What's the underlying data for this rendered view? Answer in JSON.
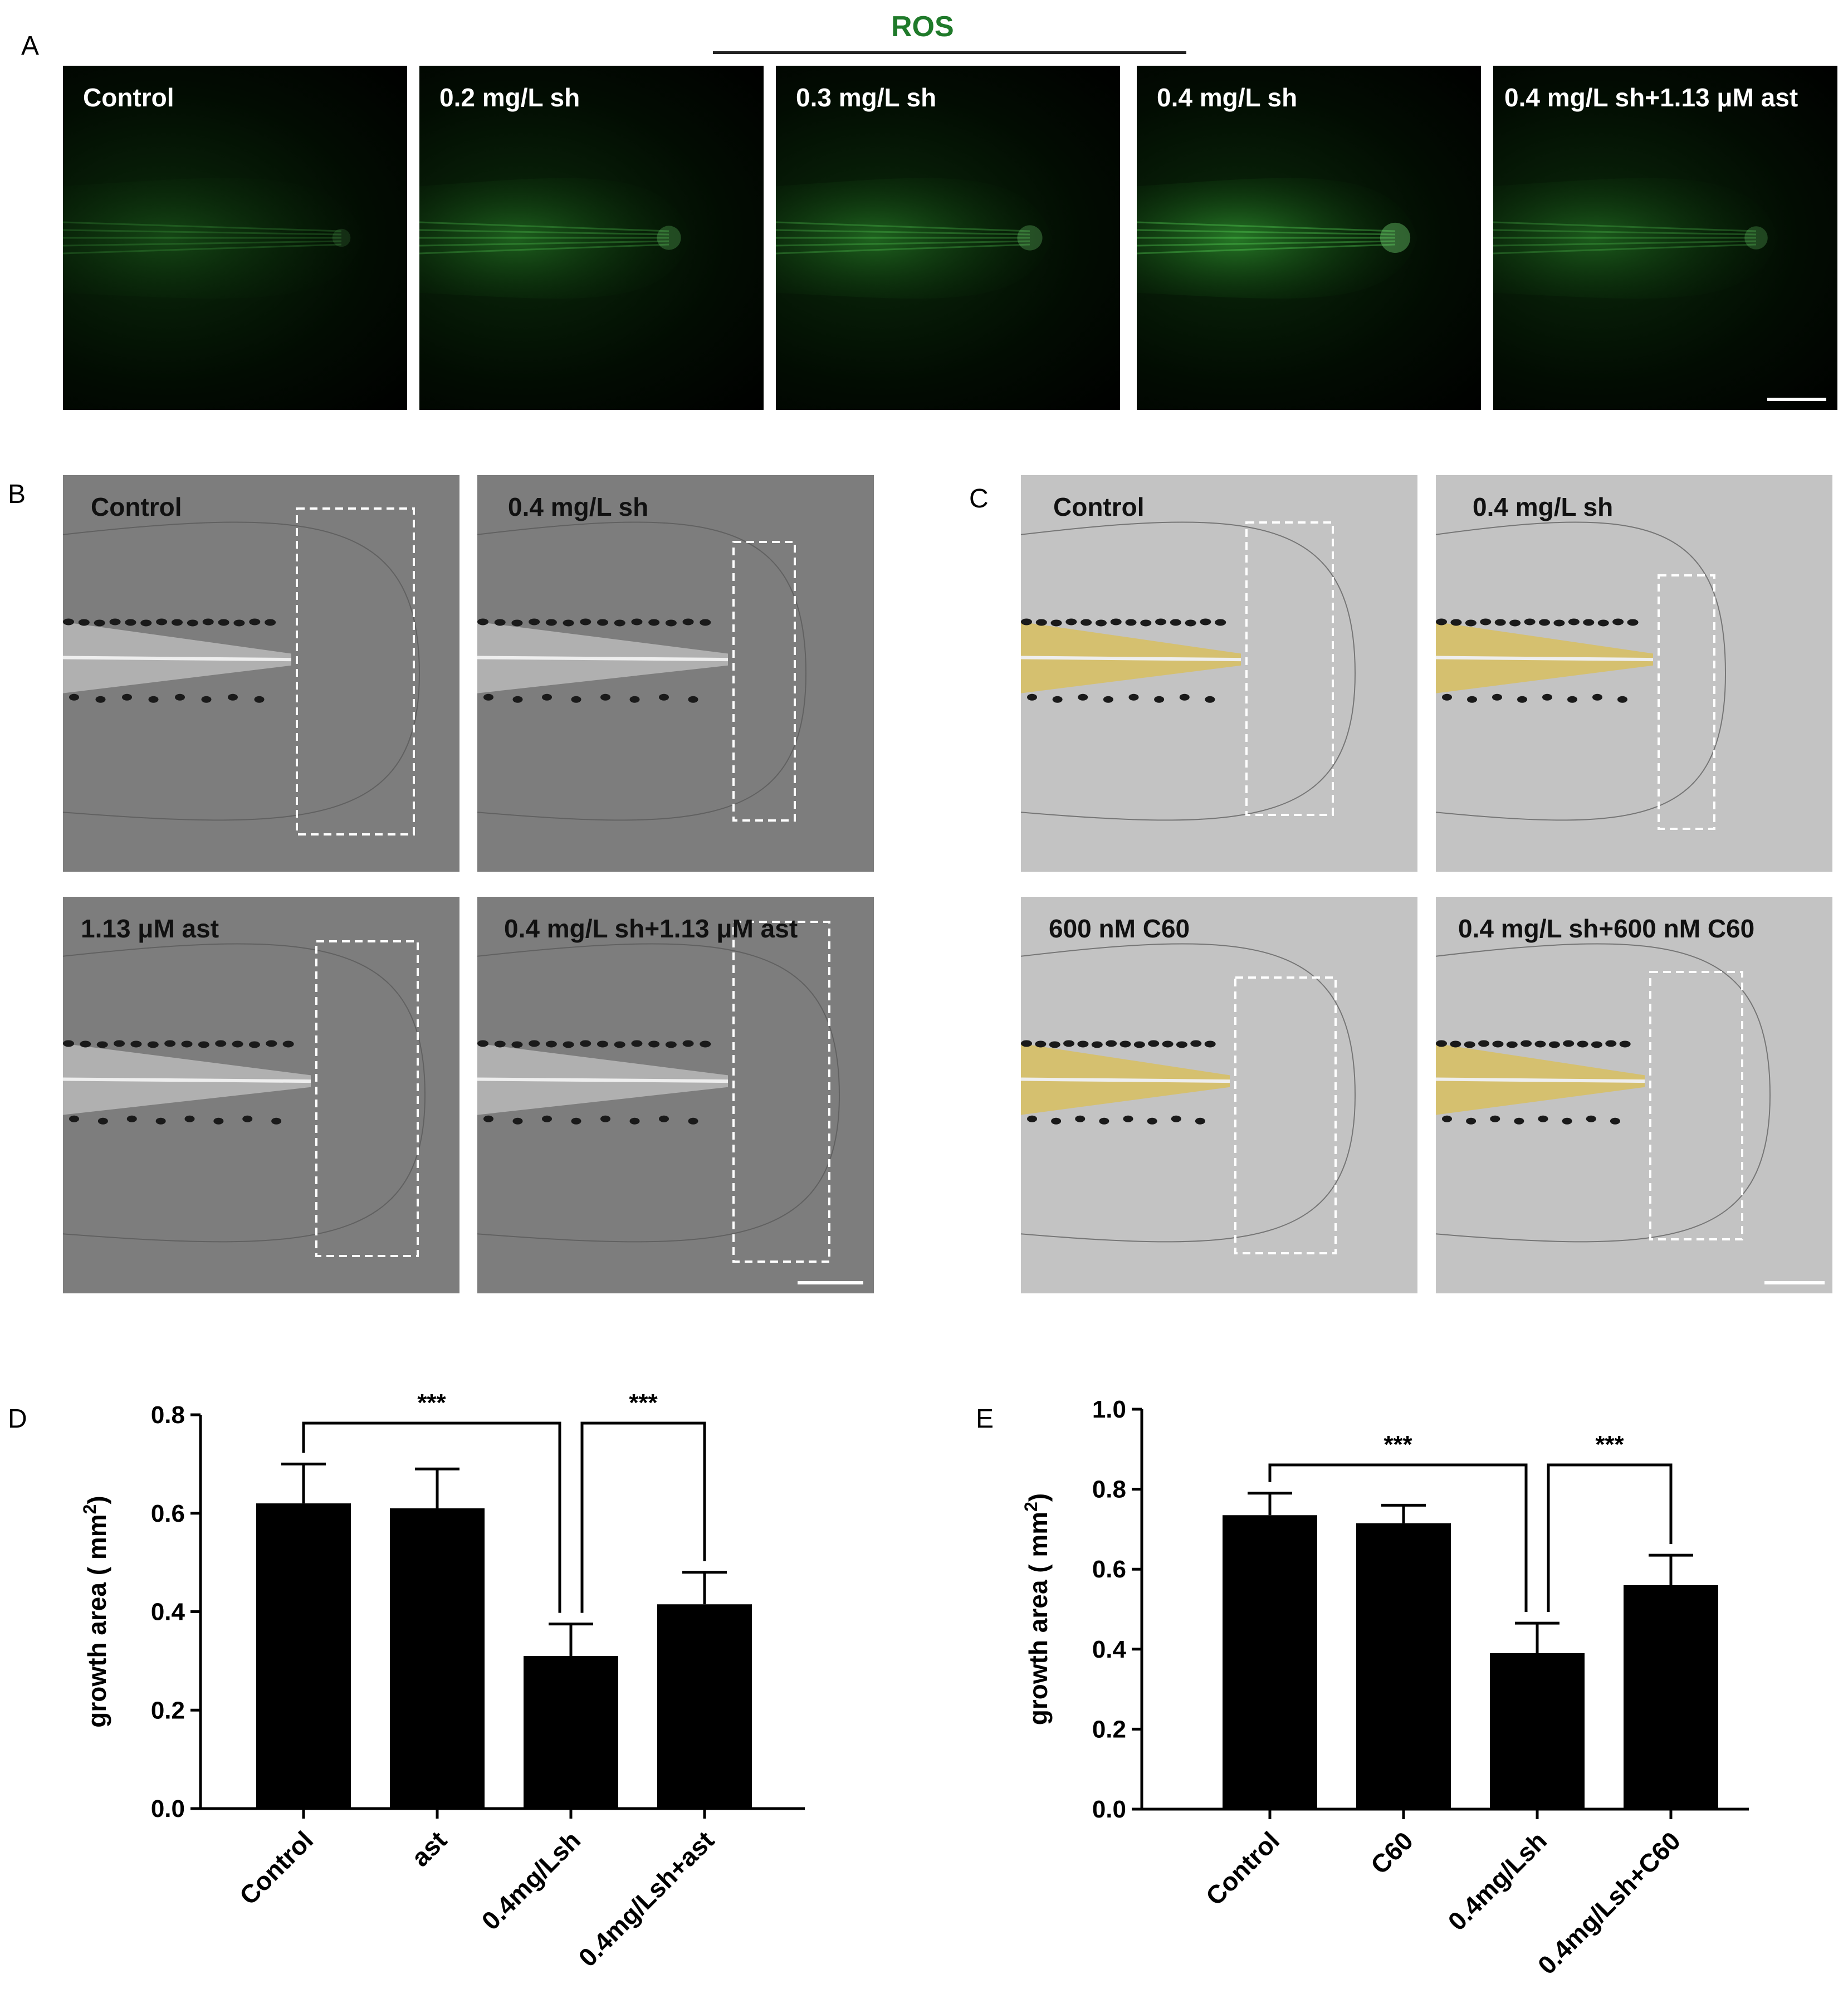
{
  "panel_labels": {
    "A": "A",
    "B": "B",
    "C": "C",
    "D": "D",
    "E": "E"
  },
  "panelA": {
    "header": "ROS",
    "labels": [
      "Control",
      "0.2 mg/L sh",
      "0.3 mg/L sh",
      "0.4 mg/L sh",
      "0.4 mg/L sh+1.13 μM ast"
    ],
    "intensity": [
      0.35,
      0.65,
      0.7,
      0.95,
      0.6
    ]
  },
  "panelB": {
    "labels": [
      "Control",
      "0.4 mg/L sh",
      "1.13 μM ast",
      "0.4 mg/L sh+1.13 μM ast"
    ]
  },
  "panelC": {
    "labels": [
      "Control",
      "0.4 mg/L sh",
      "600 nM C60",
      "0.4 mg/L sh+600 nM C60"
    ]
  },
  "chart_data": [
    {
      "panel": "D",
      "type": "bar",
      "categories": [
        "Control",
        "ast",
        "0.4mg/Lsh",
        "0.4mg/Lsh+ast"
      ],
      "values": [
        0.62,
        0.61,
        0.31,
        0.415
      ],
      "errors": [
        0.08,
        0.08,
        0.065,
        0.065
      ],
      "ylabel": "growth area ( mm",
      "ylabel_sup": "2",
      "ylabel_end": ")",
      "ylim": [
        0,
        0.8
      ],
      "yticks": [
        "0.0",
        "0.2",
        "0.4",
        "0.6",
        "0.8"
      ],
      "significance": [
        {
          "from": 0,
          "to": 2,
          "label": "***"
        },
        {
          "from": 2,
          "to": 3,
          "label": "***"
        }
      ],
      "bar_color": "#000000"
    },
    {
      "panel": "E",
      "type": "bar",
      "categories": [
        "Control",
        "C60",
        "0.4mg/Lsh",
        "0.4mg/Lsh+C60"
      ],
      "values": [
        0.735,
        0.715,
        0.39,
        0.56
      ],
      "errors": [
        0.055,
        0.045,
        0.075,
        0.075
      ],
      "ylabel": "growth area ( mm",
      "ylabel_sup": "2",
      "ylabel_end": ")",
      "ylim": [
        0,
        1.0
      ],
      "yticks": [
        "0.0",
        "0.2",
        "0.4",
        "0.6",
        "0.8",
        "1.0"
      ],
      "significance": [
        {
          "from": 0,
          "to": 2,
          "label": "***"
        },
        {
          "from": 2,
          "to": 3,
          "label": "***"
        }
      ],
      "bar_color": "#000000"
    }
  ]
}
